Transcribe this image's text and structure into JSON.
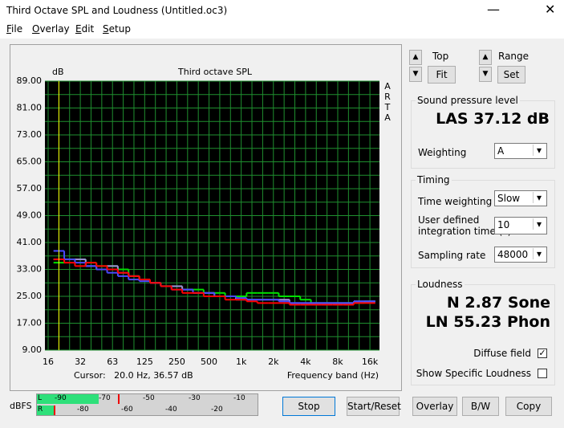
{
  "window": {
    "title": "Third Octave SPL and Loudness (Untitled.oc3)"
  },
  "menu": [
    "File",
    "Overlay",
    "Edit",
    "Setup"
  ],
  "chart_data": {
    "type": "step",
    "title": "Third octave SPL",
    "y_label": "dB",
    "x_label": "Frequency band (Hz)",
    "side_label": [
      "A",
      "R",
      "T",
      "A"
    ],
    "cursor": "Cursor:   20.0 Hz, 36.57 dB",
    "categories": [
      "16",
      null,
      null,
      "32",
      null,
      null,
      "63",
      null,
      null,
      "125",
      null,
      null,
      "250",
      null,
      null,
      "500",
      null,
      null,
      "1k",
      null,
      null,
      "2k",
      null,
      null,
      "4k",
      null,
      null,
      "8k",
      null,
      null,
      "16k"
    ],
    "series": [
      {
        "name": "green",
        "color": "#00e000",
        "values": [
          null,
          35,
          36,
          36,
          35,
          34,
          34,
          33,
          31,
          30,
          29,
          28,
          28,
          27,
          27,
          26,
          26,
          25,
          25,
          26,
          26,
          26,
          25,
          25,
          24,
          23,
          23,
          23,
          23,
          23,
          23.5
        ]
      },
      {
        "name": "purple",
        "color": "#a08cd8",
        "values": [
          null,
          36,
          36,
          36,
          34,
          33,
          34,
          32,
          31,
          30,
          29,
          28,
          28,
          27,
          26,
          26,
          25,
          25,
          24,
          24,
          24,
          24,
          24,
          23,
          23,
          23,
          23,
          23,
          23,
          23.5,
          23.5
        ]
      },
      {
        "name": "blue",
        "color": "#4a4aff",
        "values": [
          null,
          38.5,
          36,
          35,
          34,
          33,
          32,
          31,
          30,
          29.5,
          29,
          28,
          27,
          27,
          26,
          26,
          25,
          25,
          24.5,
          24,
          24,
          24,
          23.5,
          23,
          23,
          23,
          23,
          23,
          23,
          23.5,
          23.5
        ]
      },
      {
        "name": "red",
        "color": "#ff0000",
        "values": [
          null,
          36,
          35,
          34,
          35,
          34,
          33,
          32,
          31,
          30,
          29,
          28,
          27,
          26,
          26,
          25,
          25,
          24,
          24,
          23.5,
          23,
          23,
          23,
          22.5,
          22.5,
          22.5,
          22.5,
          22.5,
          22.5,
          23,
          23
        ]
      }
    ],
    "ylim": [
      9,
      89
    ],
    "yticks": [
      {
        "value": 9,
        "label": "9.00"
      },
      {
        "value": 17,
        "label": "17.00"
      },
      {
        "value": 25,
        "label": "25.00"
      },
      {
        "value": 33,
        "label": "33.00"
      },
      {
        "value": 41,
        "label": "41.00"
      },
      {
        "value": 49,
        "label": "49.00"
      },
      {
        "value": 57,
        "label": "57.00"
      },
      {
        "value": 65,
        "label": "65.00"
      },
      {
        "value": 73,
        "label": "73.00"
      },
      {
        "value": 81,
        "label": "81.00"
      },
      {
        "value": 89,
        "label": "89.00"
      }
    ],
    "grid": true
  },
  "controls": {
    "top": "Top",
    "fit": "Fit",
    "range": "Range",
    "set": "Set",
    "spl": {
      "title": "Sound pressure level",
      "reading": "LAS 37.12 dB",
      "weighting_label": "Weighting",
      "weighting": "A"
    },
    "timing": {
      "title": "Timing",
      "time_weighting_label": "Time weighting",
      "time_weighting": "Slow",
      "integration_label": [
        "User defined",
        "integration time (s)"
      ],
      "integration": "10",
      "sampling_label": "Sampling rate",
      "sampling": "48000"
    },
    "loudness": {
      "title": "Loudness",
      "n": "N 2.87 Sone",
      "ln": "LN 55.23 Phon",
      "diffuse": "Diffuse field",
      "specific": "Show Specific Loudness"
    }
  },
  "meter": {
    "label": "dBFS",
    "left": [
      "L",
      "-90",
      "-70",
      "-50",
      "-30",
      "-10"
    ],
    "right": [
      "R",
      "-80",
      "-60",
      "-40",
      "-20"
    ]
  },
  "buttons": [
    "Stop",
    "Start/Reset",
    "Overlay",
    "B/W",
    "Copy"
  ]
}
